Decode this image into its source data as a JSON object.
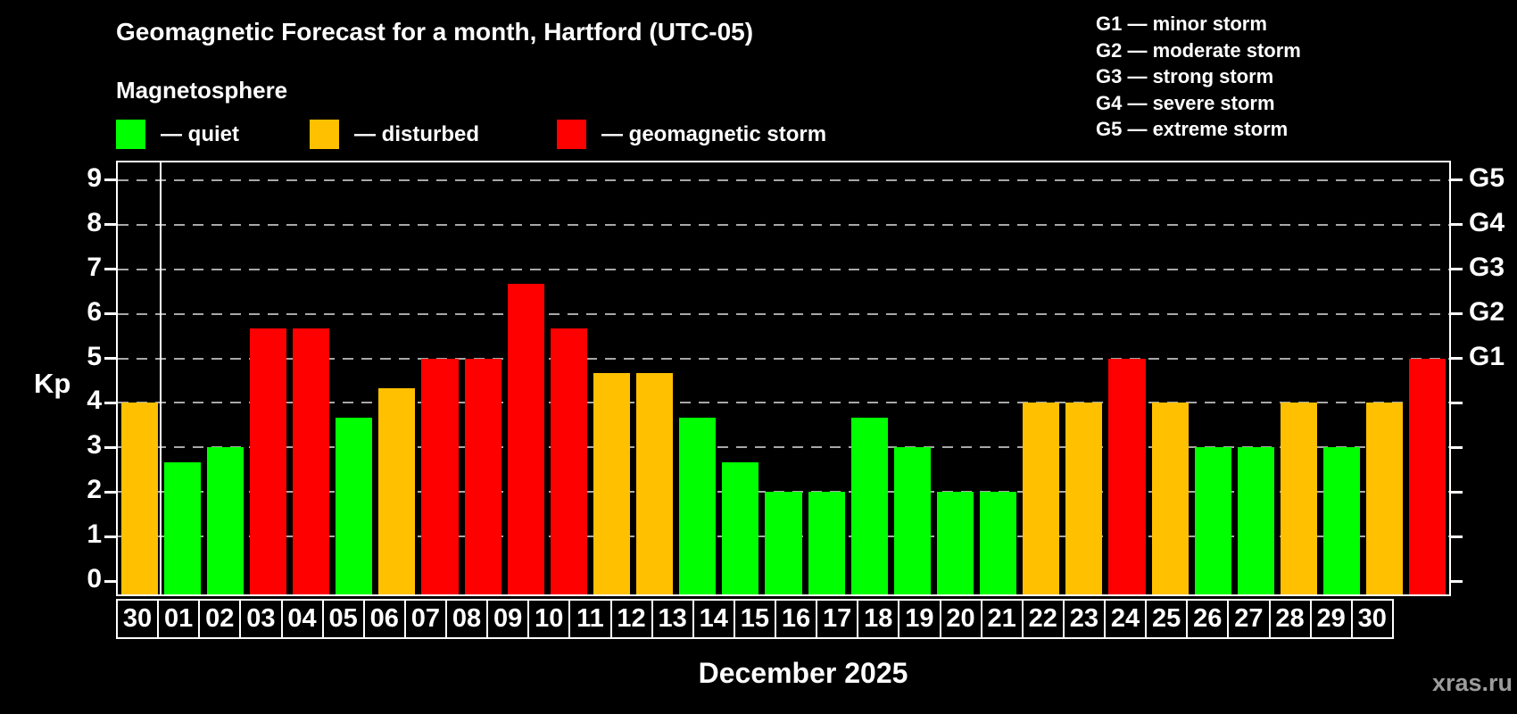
{
  "header": {
    "title": "Geomagnetic Forecast for a month, Hartford (UTC-05)",
    "subtitle": "Magnetosphere"
  },
  "legend": {
    "items": [
      {
        "name": "quiet",
        "label": "— quiet",
        "color": "#00ff00"
      },
      {
        "name": "disturbed",
        "label": "— disturbed",
        "color": "#ffc000"
      },
      {
        "name": "storm",
        "label": "— geomagnetic storm",
        "color": "#ff0000"
      }
    ]
  },
  "storm_scale_legend": {
    "lines": [
      "G1 — minor storm",
      "G2 — moderate storm",
      "G3 — strong storm",
      "G4 — severe storm",
      "G5 — extreme storm"
    ]
  },
  "chart_data": {
    "type": "bar",
    "title": "Geomagnetic Forecast for a month, Hartford (UTC-05)",
    "ylabel": "Kp",
    "xlabel": "December 2025",
    "ylim": [
      0,
      9.4
    ],
    "grid": "horizontal dashed lines at each integer Kp",
    "legend_position": "top-left",
    "y_ticks": [
      "9",
      "8",
      "7",
      "6",
      "5",
      "4",
      "3",
      "2",
      "1",
      "0"
    ],
    "right_axis_ticks": [
      {
        "label": "G5",
        "kp": 9
      },
      {
        "label": "G4",
        "kp": 8
      },
      {
        "label": "G3",
        "kp": 7
      },
      {
        "label": "G2",
        "kp": 6
      },
      {
        "label": "G1",
        "kp": 5
      }
    ],
    "status_colors": {
      "quiet": "#00ff00",
      "disturbed": "#ffc000",
      "storm": "#ff0000"
    },
    "bars": [
      {
        "day": "30",
        "kp": 4.0,
        "status": "disturbed"
      },
      {
        "day": "01",
        "kp": 2.67,
        "status": "quiet"
      },
      {
        "day": "02",
        "kp": 3.0,
        "status": "quiet"
      },
      {
        "day": "03",
        "kp": 5.67,
        "status": "storm"
      },
      {
        "day": "04",
        "kp": 5.67,
        "status": "storm"
      },
      {
        "day": "05",
        "kp": 3.67,
        "status": "quiet"
      },
      {
        "day": "06",
        "kp": 4.33,
        "status": "disturbed"
      },
      {
        "day": "07",
        "kp": 5.0,
        "status": "storm"
      },
      {
        "day": "08",
        "kp": 5.0,
        "status": "storm"
      },
      {
        "day": "09",
        "kp": 6.67,
        "status": "storm"
      },
      {
        "day": "10",
        "kp": 5.67,
        "status": "storm"
      },
      {
        "day": "11",
        "kp": 4.67,
        "status": "disturbed"
      },
      {
        "day": "12",
        "kp": 4.67,
        "status": "disturbed"
      },
      {
        "day": "13",
        "kp": 3.67,
        "status": "quiet"
      },
      {
        "day": "14",
        "kp": 2.67,
        "status": "quiet"
      },
      {
        "day": "15",
        "kp": 2.0,
        "status": "quiet"
      },
      {
        "day": "16",
        "kp": 2.0,
        "status": "quiet"
      },
      {
        "day": "17",
        "kp": 3.67,
        "status": "quiet"
      },
      {
        "day": "18",
        "kp": 3.0,
        "status": "quiet"
      },
      {
        "day": "19",
        "kp": 2.0,
        "status": "quiet"
      },
      {
        "day": "20",
        "kp": 2.0,
        "status": "quiet"
      },
      {
        "day": "21",
        "kp": 4.0,
        "status": "disturbed"
      },
      {
        "day": "22",
        "kp": 4.0,
        "status": "disturbed"
      },
      {
        "day": "23",
        "kp": 5.0,
        "status": "storm"
      },
      {
        "day": "24",
        "kp": 4.0,
        "status": "disturbed"
      },
      {
        "day": "25",
        "kp": 3.0,
        "status": "quiet"
      },
      {
        "day": "26",
        "kp": 3.0,
        "status": "quiet"
      },
      {
        "day": "27",
        "kp": 4.0,
        "status": "disturbed"
      },
      {
        "day": "28",
        "kp": 3.0,
        "status": "quiet"
      },
      {
        "day": "29",
        "kp": 4.0,
        "status": "disturbed"
      },
      {
        "day": "30",
        "kp": 5.0,
        "status": "storm"
      }
    ]
  },
  "x_axis_title": "December 2025",
  "watermark": "xras.ru",
  "colors": {
    "background": "#000000",
    "axis": "#ffffff",
    "grid": "#a8a8a8",
    "watermark": "#9c9c9c"
  }
}
